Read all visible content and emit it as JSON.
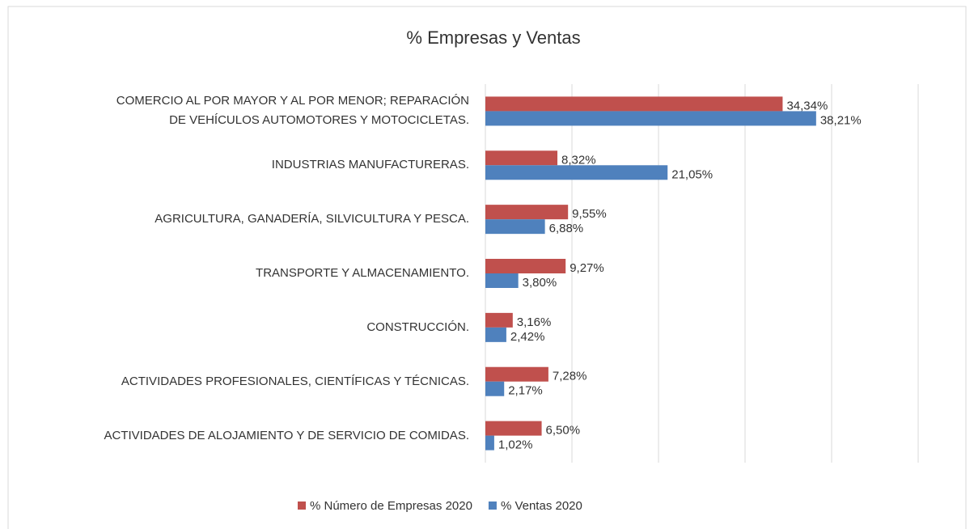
{
  "chart_data": {
    "type": "barh",
    "title": "% Empresas y Ventas",
    "categories": [
      "COMERCIO AL POR MAYOR Y AL POR MENOR; REPARACIÓN\nDE VEHÍCULOS AUTOMOTORES Y MOTOCICLETAS.",
      "INDUSTRIAS MANUFACTURERAS.",
      "AGRICULTURA, GANADERÍA,  SILVICULTURA Y PESCA.",
      "TRANSPORTE Y ALMACENAMIENTO.",
      "CONSTRUCCIÓN.",
      "ACTIVIDADES PROFESIONALES, CIENTÍFICAS Y TÉCNICAS.",
      "ACTIVIDADES DE ALOJAMIENTO Y DE SERVICIO DE COMIDAS."
    ],
    "series": [
      {
        "name": "% Número de Empresas 2020",
        "color": "#c0504d",
        "values": [
          34.34,
          8.32,
          9.55,
          9.27,
          3.16,
          7.28,
          6.5
        ],
        "value_labels": [
          "34,34%",
          "8,32%",
          "9,55%",
          "9,27%",
          "3,16%",
          "7,28%",
          "6,50%"
        ]
      },
      {
        "name": "% Ventas 2020",
        "color": "#4f81bd",
        "values": [
          38.21,
          21.05,
          6.88,
          3.8,
          2.42,
          2.17,
          1.02
        ],
        "value_labels": [
          "38,21%",
          "21,05%",
          "6,88%",
          "3,80%",
          "2,42%",
          "2,17%",
          "1,02%"
        ]
      }
    ],
    "xlim": [
      0,
      50
    ],
    "xticks": [
      0,
      10,
      20,
      30,
      40,
      50
    ],
    "grid": true,
    "legend": "bottom"
  }
}
